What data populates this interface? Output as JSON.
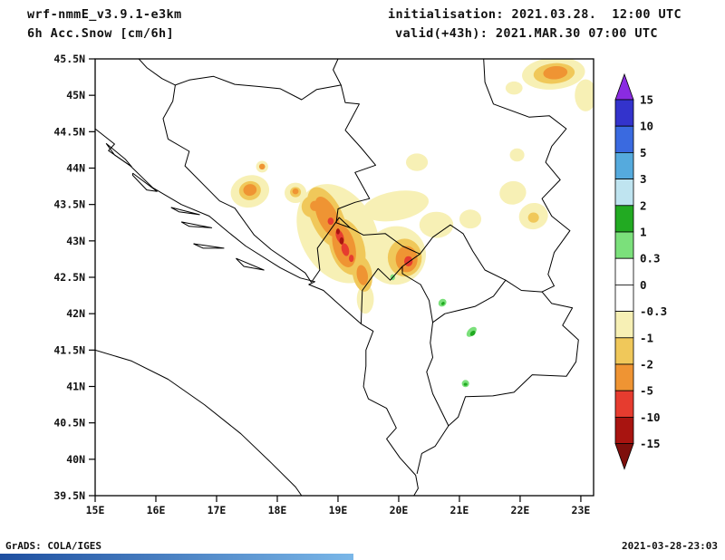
{
  "header": {
    "model": "wrf-nmmE_v3.9.1-e3km",
    "field": "6h Acc.Snow [cm/6h]",
    "init": "initialisation: 2021.03.28.  12:00 UTC",
    "valid": "valid(+43h): 2021.MAR.30 07:00 UTC"
  },
  "footer": {
    "left": "GrADS: COLA/IGES",
    "right": "2021-03-28-23:03"
  },
  "chart_data": {
    "type": "heatmap",
    "title": "6h Acc.Snow",
    "units": "cm/6h",
    "projection": "latlon",
    "lon_range": [
      15,
      23.21
    ],
    "lat_range": [
      39.5,
      45.5
    ],
    "grid": false,
    "legend_position": "right",
    "lon_ticks": [
      [
        15,
        "15E"
      ],
      [
        16,
        "16E"
      ],
      [
        17,
        "17E"
      ],
      [
        18,
        "18E"
      ],
      [
        19,
        "19E"
      ],
      [
        20,
        "20E"
      ],
      [
        21,
        "21E"
      ],
      [
        22,
        "22E"
      ],
      [
        23,
        "23E"
      ]
    ],
    "lat_ticks": [
      [
        45.5,
        "45.5N"
      ],
      [
        45,
        "45N"
      ],
      [
        44.5,
        "44.5N"
      ],
      [
        44,
        "44N"
      ],
      [
        43.5,
        "43.5N"
      ],
      [
        43,
        "43N"
      ],
      [
        42.5,
        "42.5N"
      ],
      [
        42,
        "42N"
      ],
      [
        41.5,
        "41.5N"
      ],
      [
        41,
        "41N"
      ],
      [
        40.5,
        "40.5N"
      ],
      [
        40,
        "40N"
      ],
      [
        39.5,
        "39.5N"
      ]
    ],
    "colorbar": {
      "labels": [
        "15",
        "10",
        "5",
        "3",
        "2",
        "1",
        "0.3",
        "0",
        "-0.3",
        "-1",
        "-2",
        "-5",
        "-10",
        "-15"
      ],
      "colors": [
        "#8a2be2",
        "#3333cc",
        "#3a6ae0",
        "#55aadd",
        "#bfe4f0",
        "#22aa22",
        "#7be07b",
        "#ffffff",
        "#ffffff",
        "#f7f0b5",
        "#f0c85a",
        "#ef9433",
        "#e63c2f",
        "#a81410",
        "#7e0f0c"
      ]
    },
    "palette": {
      "py": "#f7f0b5",
      "gold": "#f0c85a",
      "orange": "#ef9433",
      "red": "#e63c2f",
      "dred": "#a81410",
      "lgreen": "#7be07b",
      "dgreen": "#22aa22"
    },
    "borders": [
      [
        [
          15.72,
          45.5
        ],
        [
          15.85,
          45.38
        ],
        [
          16.1,
          45.23
        ],
        [
          16.32,
          45.14
        ],
        [
          16.55,
          45.21
        ],
        [
          16.95,
          45.26
        ],
        [
          17.3,
          45.15
        ],
        [
          17.7,
          45.12
        ],
        [
          18.05,
          45.09
        ],
        [
          18.4,
          44.94
        ],
        [
          18.65,
          45.08
        ],
        [
          19.05,
          45.14
        ],
        [
          19.12,
          44.9
        ],
        [
          19.35,
          44.88
        ],
        [
          19.12,
          44.52
        ],
        [
          19.38,
          44.28
        ],
        [
          19.62,
          44.04
        ],
        [
          19.28,
          43.94
        ],
        [
          19.52,
          43.58
        ],
        [
          19.28,
          43.53
        ],
        [
          19.0,
          43.44
        ],
        [
          18.97,
          43.25
        ],
        [
          19.2,
          43.18
        ]
      ],
      [
        [
          19.05,
          45.14
        ],
        [
          18.92,
          45.35
        ],
        [
          19.0,
          45.5
        ]
      ],
      [
        [
          16.32,
          45.14
        ],
        [
          16.28,
          44.92
        ],
        [
          16.12,
          44.68
        ],
        [
          16.2,
          44.4
        ],
        [
          16.55,
          44.23
        ],
        [
          16.48,
          44.03
        ],
        [
          17.05,
          43.55
        ],
        [
          17.3,
          43.45
        ],
        [
          17.62,
          43.08
        ],
        [
          17.9,
          42.88
        ],
        [
          18.46,
          42.56
        ],
        [
          18.56,
          42.43
        ]
      ],
      [
        [
          15.0,
          44.54
        ],
        [
          15.32,
          44.33
        ],
        [
          15.22,
          44.24
        ],
        [
          15.58,
          44.03
        ],
        [
          15.95,
          43.73
        ],
        [
          16.42,
          43.5
        ],
        [
          16.88,
          43.34
        ],
        [
          17.18,
          43.13
        ],
        [
          17.48,
          42.93
        ],
        [
          18.05,
          42.63
        ],
        [
          18.38,
          42.49
        ],
        [
          18.62,
          42.44
        ],
        [
          18.52,
          42.4
        ],
        [
          18.76,
          42.32
        ],
        [
          19.08,
          42.08
        ],
        [
          19.38,
          41.86
        ],
        [
          19.58,
          41.76
        ],
        [
          19.46,
          41.5
        ],
        [
          19.46,
          41.28
        ],
        [
          19.42,
          41.0
        ],
        [
          19.5,
          40.83
        ],
        [
          19.8,
          40.7
        ],
        [
          19.96,
          40.43
        ],
        [
          19.8,
          40.28
        ],
        [
          20.02,
          40.02
        ],
        [
          20.28,
          39.78
        ],
        [
          20.32,
          39.6
        ],
        [
          20.25,
          39.5
        ]
      ],
      [
        [
          15.18,
          44.34
        ],
        [
          15.5,
          44.12
        ],
        [
          15.6,
          44.02
        ],
        [
          15.32,
          44.18
        ],
        [
          15.18,
          44.34
        ]
      ],
      [
        [
          15.62,
          43.93
        ],
        [
          16.02,
          43.68
        ],
        [
          15.85,
          43.7
        ],
        [
          15.62,
          43.9
        ],
        [
          15.62,
          43.93
        ]
      ],
      [
        [
          16.25,
          43.46
        ],
        [
          16.72,
          43.36
        ],
        [
          16.38,
          43.4
        ],
        [
          16.25,
          43.46
        ]
      ],
      [
        [
          16.42,
          43.26
        ],
        [
          16.92,
          43.18
        ],
        [
          16.55,
          43.2
        ],
        [
          16.42,
          43.26
        ]
      ],
      [
        [
          16.62,
          42.96
        ],
        [
          17.12,
          42.9
        ],
        [
          16.78,
          42.9
        ],
        [
          16.62,
          42.96
        ]
      ],
      [
        [
          17.32,
          42.76
        ],
        [
          17.78,
          42.6
        ],
        [
          17.45,
          42.65
        ],
        [
          17.32,
          42.76
        ]
      ],
      [
        [
          18.56,
          42.43
        ],
        [
          18.7,
          42.6
        ],
        [
          18.66,
          42.9
        ],
        [
          19.02,
          43.32
        ],
        [
          19.2,
          43.18
        ],
        [
          19.42,
          43.08
        ],
        [
          19.78,
          43.1
        ],
        [
          20.06,
          42.93
        ],
        [
          20.35,
          42.82
        ],
        [
          20.06,
          42.65
        ],
        [
          19.86,
          42.46
        ],
        [
          19.66,
          42.62
        ],
        [
          19.4,
          42.32
        ],
        [
          19.38,
          41.86
        ]
      ],
      [
        [
          21.4,
          45.5
        ],
        [
          21.42,
          45.18
        ],
        [
          21.56,
          44.88
        ],
        [
          22.15,
          44.7
        ],
        [
          22.48,
          44.72
        ],
        [
          22.76,
          44.54
        ],
        [
          22.52,
          44.3
        ],
        [
          22.42,
          44.08
        ],
        [
          22.66,
          43.84
        ],
        [
          22.36,
          43.58
        ],
        [
          22.52,
          43.34
        ],
        [
          22.82,
          43.14
        ],
        [
          22.56,
          42.84
        ],
        [
          22.46,
          42.54
        ],
        [
          22.56,
          42.38
        ],
        [
          22.36,
          42.3
        ],
        [
          22.52,
          42.14
        ],
        [
          22.86,
          42.08
        ],
        [
          22.7,
          41.84
        ],
        [
          22.96,
          41.64
        ],
        [
          22.92,
          41.34
        ],
        [
          22.76,
          41.14
        ],
        [
          22.2,
          41.16
        ],
        [
          21.9,
          40.92
        ],
        [
          21.55,
          40.87
        ],
        [
          21.1,
          40.86
        ],
        [
          20.98,
          40.58
        ],
        [
          20.82,
          40.46
        ],
        [
          20.6,
          40.18
        ],
        [
          20.38,
          40.08
        ],
        [
          20.3,
          39.8
        ]
      ],
      [
        [
          20.35,
          42.82
        ],
        [
          20.56,
          43.05
        ],
        [
          20.85,
          43.22
        ],
        [
          21.06,
          43.1
        ],
        [
          21.22,
          42.86
        ],
        [
          21.42,
          42.6
        ],
        [
          21.76,
          42.46
        ],
        [
          21.56,
          42.24
        ],
        [
          21.26,
          42.1
        ],
        [
          20.76,
          42.0
        ],
        [
          20.56,
          41.88
        ],
        [
          20.5,
          42.18
        ],
        [
          20.36,
          42.4
        ],
        [
          20.06,
          42.55
        ],
        [
          20.06,
          42.65
        ]
      ],
      [
        [
          21.76,
          42.46
        ],
        [
          22.02,
          42.32
        ],
        [
          22.36,
          42.3
        ]
      ],
      [
        [
          20.56,
          41.88
        ],
        [
          20.52,
          41.6
        ],
        [
          20.56,
          41.4
        ],
        [
          20.46,
          41.2
        ],
        [
          20.56,
          40.9
        ],
        [
          20.82,
          40.46
        ]
      ],
      [
        [
          15.0,
          41.5
        ],
        [
          15.6,
          41.35
        ],
        [
          16.2,
          41.1
        ],
        [
          16.8,
          40.75
        ],
        [
          17.4,
          40.35
        ],
        [
          17.9,
          39.95
        ],
        [
          18.3,
          39.62
        ],
        [
          18.4,
          39.5
        ]
      ]
    ],
    "patches": [
      [
        19.0,
        43.1,
        0.62,
        0.72,
        -28,
        "py"
      ],
      [
        19.95,
        42.8,
        0.5,
        0.4,
        -20,
        "py"
      ],
      [
        19.45,
        42.2,
        0.14,
        0.2,
        0,
        "py"
      ],
      [
        19.95,
        43.48,
        0.55,
        0.2,
        -10,
        "py"
      ],
      [
        20.62,
        43.22,
        0.28,
        0.18,
        0,
        "py"
      ],
      [
        21.18,
        43.3,
        0.18,
        0.13,
        0,
        "py"
      ],
      [
        17.55,
        43.68,
        0.32,
        0.22,
        -15,
        "py"
      ],
      [
        18.3,
        43.66,
        0.18,
        0.14,
        0,
        "py"
      ],
      [
        17.75,
        44.02,
        0.1,
        0.08,
        0,
        "py"
      ],
      [
        22.55,
        45.3,
        0.52,
        0.22,
        -5,
        "py"
      ],
      [
        21.9,
        45.1,
        0.14,
        0.09,
        0,
        "py"
      ],
      [
        23.08,
        45.0,
        0.18,
        0.22,
        0,
        "py"
      ],
      [
        21.95,
        44.18,
        0.12,
        0.09,
        0,
        "py"
      ],
      [
        21.88,
        43.66,
        0.22,
        0.16,
        -10,
        "py"
      ],
      [
        22.22,
        43.34,
        0.24,
        0.18,
        -15,
        "py"
      ],
      [
        20.3,
        44.08,
        0.18,
        0.12,
        0,
        "py"
      ],
      [
        18.82,
        43.32,
        0.26,
        0.45,
        -25,
        "gold"
      ],
      [
        19.15,
        42.92,
        0.28,
        0.4,
        -18,
        "gold"
      ],
      [
        19.4,
        42.55,
        0.16,
        0.25,
        -10,
        "gold"
      ],
      [
        20.1,
        42.77,
        0.28,
        0.26,
        0,
        "gold"
      ],
      [
        18.58,
        43.47,
        0.18,
        0.15,
        -20,
        "gold"
      ],
      [
        22.56,
        45.3,
        0.34,
        0.14,
        -5,
        "gold"
      ],
      [
        17.55,
        43.69,
        0.18,
        0.13,
        -10,
        "gold"
      ],
      [
        18.3,
        43.67,
        0.09,
        0.07,
        0,
        "gold"
      ],
      [
        22.22,
        43.32,
        0.09,
        0.07,
        0,
        "gold"
      ],
      [
        18.83,
        43.33,
        0.16,
        0.3,
        -25,
        "orange"
      ],
      [
        19.1,
        42.93,
        0.18,
        0.3,
        -15,
        "orange"
      ],
      [
        20.13,
        42.75,
        0.18,
        0.18,
        0,
        "orange"
      ],
      [
        17.55,
        43.7,
        0.11,
        0.08,
        -10,
        "orange"
      ],
      [
        22.58,
        45.31,
        0.2,
        0.09,
        -5,
        "orange"
      ],
      [
        17.75,
        44.02,
        0.05,
        0.04,
        0,
        "orange"
      ],
      [
        18.3,
        43.68,
        0.05,
        0.04,
        0,
        "orange"
      ],
      [
        19.4,
        42.53,
        0.09,
        0.14,
        -10,
        "orange"
      ],
      [
        18.62,
        43.48,
        0.08,
        0.07,
        0,
        "orange"
      ],
      [
        19.03,
        43.06,
        0.06,
        0.1,
        -20,
        "red"
      ],
      [
        19.12,
        42.88,
        0.06,
        0.09,
        -15,
        "red"
      ],
      [
        20.16,
        42.72,
        0.07,
        0.07,
        0,
        "red"
      ],
      [
        18.88,
        43.27,
        0.05,
        0.05,
        0,
        "red"
      ],
      [
        19.22,
        42.76,
        0.04,
        0.05,
        0,
        "red"
      ],
      [
        19.06,
        43.0,
        0.035,
        0.05,
        0,
        "dred"
      ],
      [
        19.0,
        43.13,
        0.03,
        0.04,
        0,
        "dred"
      ],
      [
        20.72,
        42.15,
        0.07,
        0.05,
        -40,
        "lgreen"
      ],
      [
        21.2,
        41.75,
        0.1,
        0.05,
        -45,
        "lgreen"
      ],
      [
        21.1,
        41.04,
        0.06,
        0.05,
        0,
        "lgreen"
      ],
      [
        19.9,
        42.5,
        0.04,
        0.04,
        0,
        "lgreen"
      ],
      [
        21.22,
        41.73,
        0.05,
        0.03,
        -45,
        "dgreen"
      ],
      [
        20.73,
        42.14,
        0.03,
        0.02,
        -40,
        "dgreen"
      ],
      [
        21.1,
        41.03,
        0.03,
        0.02,
        0,
        "dgreen"
      ]
    ]
  }
}
